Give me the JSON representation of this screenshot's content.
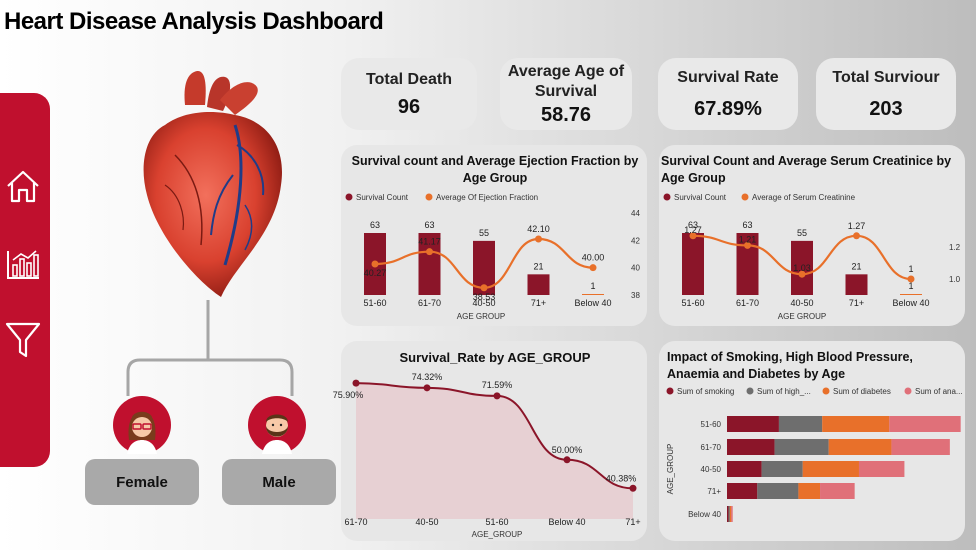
{
  "page": {
    "title": "Heart Disease Analysis Dashboard"
  },
  "colors": {
    "accent": "#c0102e",
    "bar": "#8b1529",
    "line": "#e8702a",
    "gray": "#6e6e6e",
    "pink": "#e07079",
    "card": "#e7e7e7"
  },
  "nav": [
    {
      "icon": "home-icon"
    },
    {
      "icon": "bar-chart-icon"
    },
    {
      "icon": "filter-icon"
    }
  ],
  "kpis": [
    {
      "label": "Total Death",
      "value": "96"
    },
    {
      "label": "Average Age of Survival",
      "value": "58.76"
    },
    {
      "label": "Survival Rate",
      "value": "67.89%"
    },
    {
      "label": "Total Surviour",
      "value": "203"
    }
  ],
  "gender_buttons": {
    "female": "Female",
    "male": "Male"
  },
  "chart_data": [
    {
      "type": "bar",
      "title": "Survival count and Average Ejection Fraction by Age Group",
      "categories": [
        "51-60",
        "61-70",
        "40-50",
        "71+",
        "Below 40"
      ],
      "xlabel": "AGE GROUP",
      "legend": [
        "Survival Count",
        "Average Of Ejection Fraction"
      ],
      "series": [
        {
          "name": "Survival Count",
          "values": [
            63,
            63,
            55,
            21,
            1
          ]
        },
        {
          "name": "Average Of Ejection Fraction",
          "values": [
            40.27,
            41.17,
            38.53,
            42.1,
            40.0
          ]
        }
      ],
      "y2_ticks": [
        "44",
        "42",
        "40",
        "38"
      ],
      "y2lim": [
        38,
        44
      ]
    },
    {
      "type": "bar",
      "title": "Survival Count and Average Serum Creatinice by Age Group",
      "categories": [
        "51-60",
        "61-70",
        "40-50",
        "71+",
        "Below 40"
      ],
      "xlabel": "AGE GROUP",
      "legend": [
        "Survival Count",
        "Average of Serum Creatinine"
      ],
      "series": [
        {
          "name": "Survival Count",
          "values": [
            63,
            63,
            55,
            21,
            1
          ]
        },
        {
          "name": "Average of Serum Creatinine",
          "values": [
            1.27,
            1.21,
            1.03,
            1.27,
            1.0
          ]
        }
      ],
      "y2_ticks": [
        "1.2",
        "1.0"
      ],
      "y2lim": [
        0.9,
        1.35
      ]
    },
    {
      "type": "area",
      "title": "Survival_Rate by AGE_GROUP",
      "categories": [
        "61-70",
        "40-50",
        "51-60",
        "Below 40",
        "71+"
      ],
      "xlabel": "AGE_GROUP",
      "values": [
        75.9,
        74.32,
        71.59,
        50.0,
        40.38
      ],
      "labels": [
        "75.90%",
        "74.32%",
        "71.59%",
        "50.00%",
        "40.38%"
      ],
      "ylim": [
        30,
        80
      ]
    },
    {
      "type": "bar",
      "title": "Impact of Smoking, High Blood Pressure, Anaemia and Diabetes by Age",
      "orientation": "horizontal",
      "stacked": true,
      "categories": [
        "51-60",
        "61-70",
        "40-50",
        "71+",
        "Below 40"
      ],
      "ylabel": "AGE_GROUP",
      "legend": [
        "Sum of smoking",
        "Sum of high_...",
        "Sum of diabetes",
        "Sum of ana..."
      ],
      "series": [
        {
          "name": "Sum of smoking",
          "values": [
            24,
            22,
            16,
            14,
            1
          ]
        },
        {
          "name": "Sum of high_blood_pressure",
          "values": [
            20,
            25,
            19,
            19,
            1
          ]
        },
        {
          "name": "Sum of diabetes",
          "values": [
            31,
            29,
            26,
            10,
            1
          ]
        },
        {
          "name": "Sum of anaemia",
          "values": [
            33,
            27,
            21,
            16,
            1
          ]
        }
      ],
      "xlim": [
        0,
        110
      ]
    }
  ]
}
